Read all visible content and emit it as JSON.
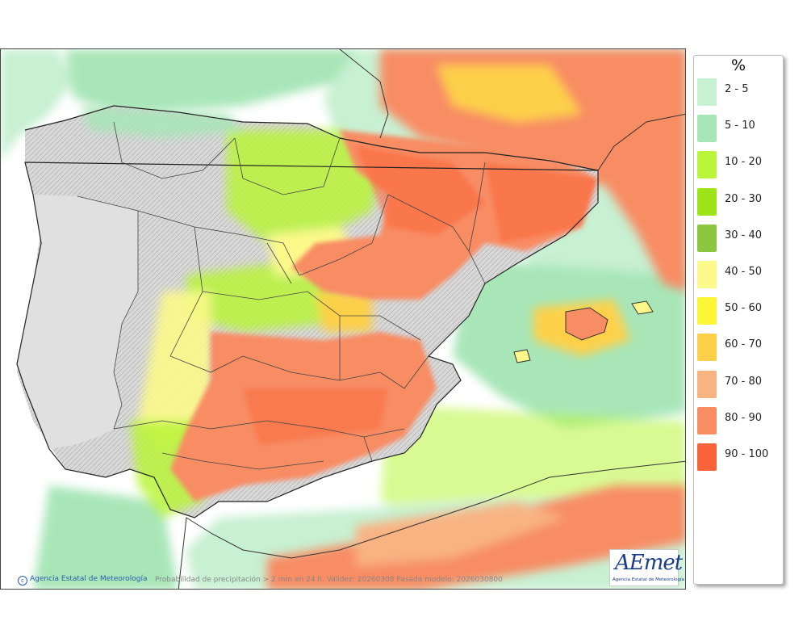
{
  "map": {
    "credit_text": "Agencia Estatal de Meteorología",
    "caption": "Probabilidad de precipitación > 2 mm en 24 h. Validez: 20260308 Pasada modelo: 2026030800",
    "logo_text": "AEmet",
    "logo_subtitle": "Agencia Estatal de Meteorología"
  },
  "legend": {
    "unit": "%",
    "items": [
      {
        "label": "2 - 5",
        "color": "#c8f0d2"
      },
      {
        "label": "5 - 10",
        "color": "#a8e6b8"
      },
      {
        "label": "10 - 20",
        "color": "#b9f53a"
      },
      {
        "label": "20 - 30",
        "color": "#9ee21a"
      },
      {
        "label": "30 - 40",
        "color": "#8dc63f"
      },
      {
        "label": "40 - 50",
        "color": "#fcf98a"
      },
      {
        "label": "50 - 60",
        "color": "#fbf536"
      },
      {
        "label": "60 - 70",
        "color": "#fdd04a"
      },
      {
        "label": "70 - 80",
        "color": "#f8b383"
      },
      {
        "label": "80 - 90",
        "color": "#f88c63"
      },
      {
        "label": "90 - 100",
        "color": "#fb643a"
      }
    ]
  }
}
